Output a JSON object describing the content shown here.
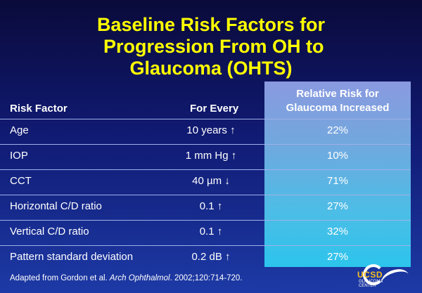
{
  "title_lines": [
    "Baseline Risk Factors for",
    " Progression From OH to",
    "Glaucoma (OHTS)"
  ],
  "headers": {
    "risk_factor": "Risk Factor",
    "for_every": "For Every",
    "relative_risk_line1": "Relative Risk for",
    "relative_risk_line2": "Glaucoma Increased"
  },
  "rows": [
    {
      "factor": "Age",
      "for_every": "10 years ↑",
      "risk": "22%"
    },
    {
      "factor": "IOP",
      "for_every": "1 mm Hg ↑",
      "risk": "10%"
    },
    {
      "factor": "CCT",
      "for_every": "40 µm ↓",
      "risk": "71%"
    },
    {
      "factor": "Horizontal C/D ratio",
      "for_every": "0.1 ↑",
      "risk": "27%"
    },
    {
      "factor": "Vertical C/D ratio",
      "for_every": "0.1 ↑",
      "risk": "32%"
    },
    {
      "factor": "Pattern standard deviation",
      "for_every": "0.2 dB ↑",
      "risk": "27%"
    }
  ],
  "footnote": {
    "prefix": "Adapted from Gordon et al. ",
    "journal": "Arch Ophthalmol",
    "suffix": ". 2002;120:714-720."
  },
  "logo": {
    "main": "UCSD",
    "sub1": "GLAUCOMA",
    "sub2": "CENTER"
  },
  "colors": {
    "title": "#ffff00",
    "background_top": "#0a0a3a",
    "background_bottom": "#1d3aa6",
    "highlight_column": "#4cbde6"
  }
}
